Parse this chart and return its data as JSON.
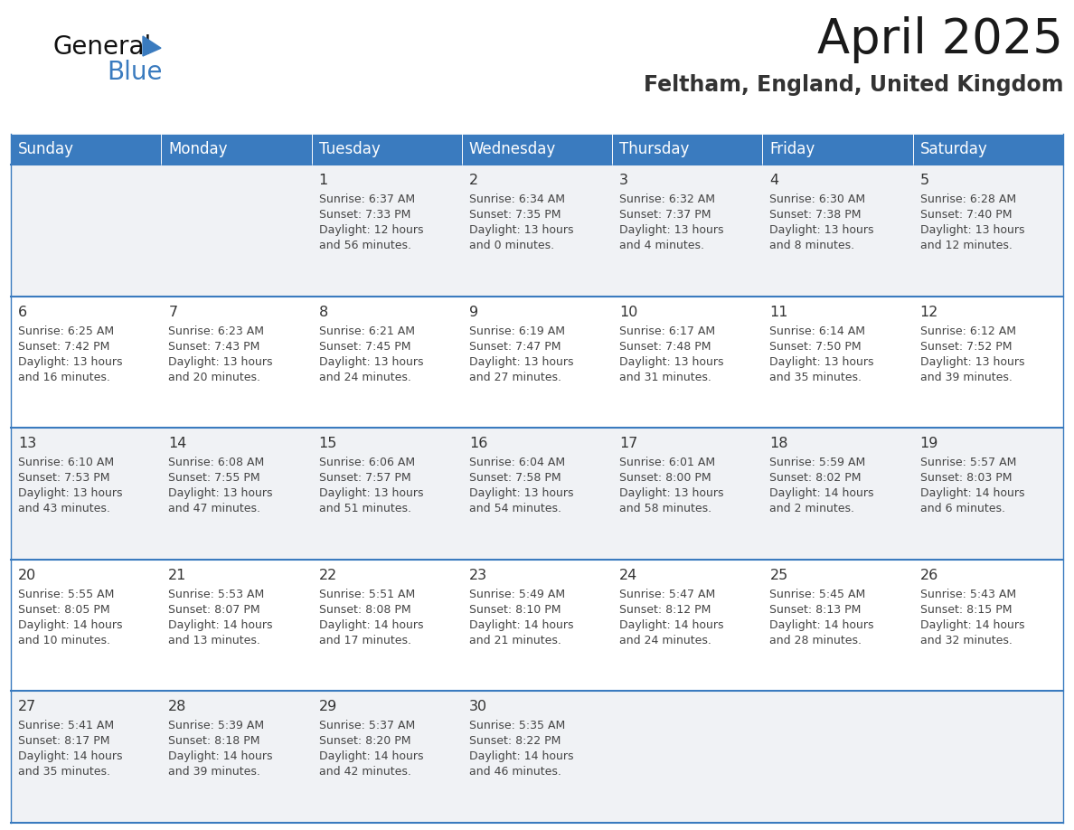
{
  "title": "April 2025",
  "subtitle": "Feltham, England, United Kingdom",
  "days_of_week": [
    "Sunday",
    "Monday",
    "Tuesday",
    "Wednesday",
    "Thursday",
    "Friday",
    "Saturday"
  ],
  "header_bg": "#3a7bbf",
  "header_text": "#ffffff",
  "row_bg_light": "#f0f2f5",
  "row_bg_white": "#ffffff",
  "separator_color": "#3a7bbf",
  "day_number_color": "#333333",
  "cell_text_color": "#444444",
  "title_color": "#1a1a1a",
  "subtitle_color": "#333333",
  "logo_general_color": "#111111",
  "logo_blue_color": "#3a7bbf",
  "logo_triangle_color": "#3a7bbf",
  "calendar_data": [
    [
      {
        "day": null,
        "sunrise": null,
        "sunset": null,
        "daylight_line1": null,
        "daylight_line2": null
      },
      {
        "day": null,
        "sunrise": null,
        "sunset": null,
        "daylight_line1": null,
        "daylight_line2": null
      },
      {
        "day": 1,
        "sunrise": "6:37 AM",
        "sunset": "7:33 PM",
        "daylight_line1": "Daylight: 12 hours",
        "daylight_line2": "and 56 minutes."
      },
      {
        "day": 2,
        "sunrise": "6:34 AM",
        "sunset": "7:35 PM",
        "daylight_line1": "Daylight: 13 hours",
        "daylight_line2": "and 0 minutes."
      },
      {
        "day": 3,
        "sunrise": "6:32 AM",
        "sunset": "7:37 PM",
        "daylight_line1": "Daylight: 13 hours",
        "daylight_line2": "and 4 minutes."
      },
      {
        "day": 4,
        "sunrise": "6:30 AM",
        "sunset": "7:38 PM",
        "daylight_line1": "Daylight: 13 hours",
        "daylight_line2": "and 8 minutes."
      },
      {
        "day": 5,
        "sunrise": "6:28 AM",
        "sunset": "7:40 PM",
        "daylight_line1": "Daylight: 13 hours",
        "daylight_line2": "and 12 minutes."
      }
    ],
    [
      {
        "day": 6,
        "sunrise": "6:25 AM",
        "sunset": "7:42 PM",
        "daylight_line1": "Daylight: 13 hours",
        "daylight_line2": "and 16 minutes."
      },
      {
        "day": 7,
        "sunrise": "6:23 AM",
        "sunset": "7:43 PM",
        "daylight_line1": "Daylight: 13 hours",
        "daylight_line2": "and 20 minutes."
      },
      {
        "day": 8,
        "sunrise": "6:21 AM",
        "sunset": "7:45 PM",
        "daylight_line1": "Daylight: 13 hours",
        "daylight_line2": "and 24 minutes."
      },
      {
        "day": 9,
        "sunrise": "6:19 AM",
        "sunset": "7:47 PM",
        "daylight_line1": "Daylight: 13 hours",
        "daylight_line2": "and 27 minutes."
      },
      {
        "day": 10,
        "sunrise": "6:17 AM",
        "sunset": "7:48 PM",
        "daylight_line1": "Daylight: 13 hours",
        "daylight_line2": "and 31 minutes."
      },
      {
        "day": 11,
        "sunrise": "6:14 AM",
        "sunset": "7:50 PM",
        "daylight_line1": "Daylight: 13 hours",
        "daylight_line2": "and 35 minutes."
      },
      {
        "day": 12,
        "sunrise": "6:12 AM",
        "sunset": "7:52 PM",
        "daylight_line1": "Daylight: 13 hours",
        "daylight_line2": "and 39 minutes."
      }
    ],
    [
      {
        "day": 13,
        "sunrise": "6:10 AM",
        "sunset": "7:53 PM",
        "daylight_line1": "Daylight: 13 hours",
        "daylight_line2": "and 43 minutes."
      },
      {
        "day": 14,
        "sunrise": "6:08 AM",
        "sunset": "7:55 PM",
        "daylight_line1": "Daylight: 13 hours",
        "daylight_line2": "and 47 minutes."
      },
      {
        "day": 15,
        "sunrise": "6:06 AM",
        "sunset": "7:57 PM",
        "daylight_line1": "Daylight: 13 hours",
        "daylight_line2": "and 51 minutes."
      },
      {
        "day": 16,
        "sunrise": "6:04 AM",
        "sunset": "7:58 PM",
        "daylight_line1": "Daylight: 13 hours",
        "daylight_line2": "and 54 minutes."
      },
      {
        "day": 17,
        "sunrise": "6:01 AM",
        "sunset": "8:00 PM",
        "daylight_line1": "Daylight: 13 hours",
        "daylight_line2": "and 58 minutes."
      },
      {
        "day": 18,
        "sunrise": "5:59 AM",
        "sunset": "8:02 PM",
        "daylight_line1": "Daylight: 14 hours",
        "daylight_line2": "and 2 minutes."
      },
      {
        "day": 19,
        "sunrise": "5:57 AM",
        "sunset": "8:03 PM",
        "daylight_line1": "Daylight: 14 hours",
        "daylight_line2": "and 6 minutes."
      }
    ],
    [
      {
        "day": 20,
        "sunrise": "5:55 AM",
        "sunset": "8:05 PM",
        "daylight_line1": "Daylight: 14 hours",
        "daylight_line2": "and 10 minutes."
      },
      {
        "day": 21,
        "sunrise": "5:53 AM",
        "sunset": "8:07 PM",
        "daylight_line1": "Daylight: 14 hours",
        "daylight_line2": "and 13 minutes."
      },
      {
        "day": 22,
        "sunrise": "5:51 AM",
        "sunset": "8:08 PM",
        "daylight_line1": "Daylight: 14 hours",
        "daylight_line2": "and 17 minutes."
      },
      {
        "day": 23,
        "sunrise": "5:49 AM",
        "sunset": "8:10 PM",
        "daylight_line1": "Daylight: 14 hours",
        "daylight_line2": "and 21 minutes."
      },
      {
        "day": 24,
        "sunrise": "5:47 AM",
        "sunset": "8:12 PM",
        "daylight_line1": "Daylight: 14 hours",
        "daylight_line2": "and 24 minutes."
      },
      {
        "day": 25,
        "sunrise": "5:45 AM",
        "sunset": "8:13 PM",
        "daylight_line1": "Daylight: 14 hours",
        "daylight_line2": "and 28 minutes."
      },
      {
        "day": 26,
        "sunrise": "5:43 AM",
        "sunset": "8:15 PM",
        "daylight_line1": "Daylight: 14 hours",
        "daylight_line2": "and 32 minutes."
      }
    ],
    [
      {
        "day": 27,
        "sunrise": "5:41 AM",
        "sunset": "8:17 PM",
        "daylight_line1": "Daylight: 14 hours",
        "daylight_line2": "and 35 minutes."
      },
      {
        "day": 28,
        "sunrise": "5:39 AM",
        "sunset": "8:18 PM",
        "daylight_line1": "Daylight: 14 hours",
        "daylight_line2": "and 39 minutes."
      },
      {
        "day": 29,
        "sunrise": "5:37 AM",
        "sunset": "8:20 PM",
        "daylight_line1": "Daylight: 14 hours",
        "daylight_line2": "and 42 minutes."
      },
      {
        "day": 30,
        "sunrise": "5:35 AM",
        "sunset": "8:22 PM",
        "daylight_line1": "Daylight: 14 hours",
        "daylight_line2": "and 46 minutes."
      },
      {
        "day": null,
        "sunrise": null,
        "sunset": null,
        "daylight_line1": null,
        "daylight_line2": null
      },
      {
        "day": null,
        "sunrise": null,
        "sunset": null,
        "daylight_line1": null,
        "daylight_line2": null
      },
      {
        "day": null,
        "sunrise": null,
        "sunset": null,
        "daylight_line1": null,
        "daylight_line2": null
      }
    ]
  ]
}
